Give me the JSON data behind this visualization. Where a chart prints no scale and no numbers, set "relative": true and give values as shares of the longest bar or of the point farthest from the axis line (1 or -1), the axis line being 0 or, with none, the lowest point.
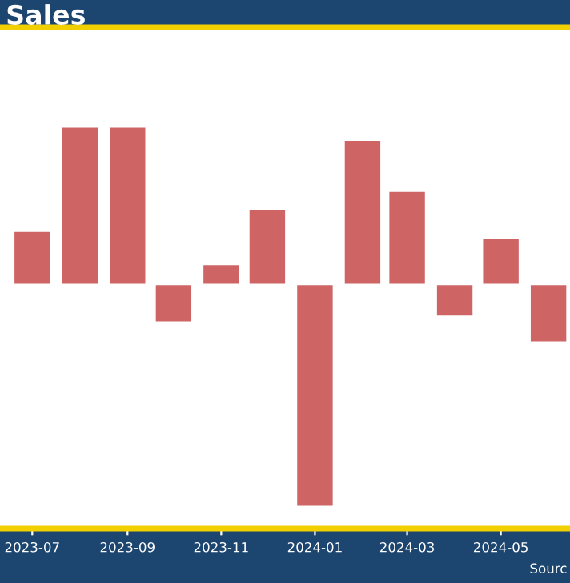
{
  "chart_data": {
    "type": "bar",
    "title": "Sales",
    "relative": true,
    "x": [
      "2023-07",
      "2023-08",
      "2023-09",
      "2023-10",
      "2023-11",
      "2023-12",
      "2024-01",
      "2024-02",
      "2024-03",
      "2024-04",
      "2024-05",
      "2024-06"
    ],
    "values": [
      0.24,
      0.71,
      0.71,
      -0.17,
      0.09,
      0.34,
      -1,
      0.65,
      0.42,
      -0.14,
      0.21,
      -0.26
    ],
    "color": "#cd5c5c",
    "xlim": [
      "2023-06-10",
      "2024-06-15"
    ],
    "xticks": [
      {
        "value": "2023-07",
        "label": "2023-07"
      },
      {
        "value": "2023-09",
        "label": "2023-09"
      },
      {
        "value": "2023-11",
        "label": "2023-11"
      },
      {
        "value": "2024-01",
        "label": "2024-01"
      },
      {
        "value": "2024-03",
        "label": "2024-03"
      },
      {
        "value": "2024-05",
        "label": "2024-05"
      }
    ],
    "tick_labels": "x",
    "annotations": [
      "Sourc"
    ]
  }
}
